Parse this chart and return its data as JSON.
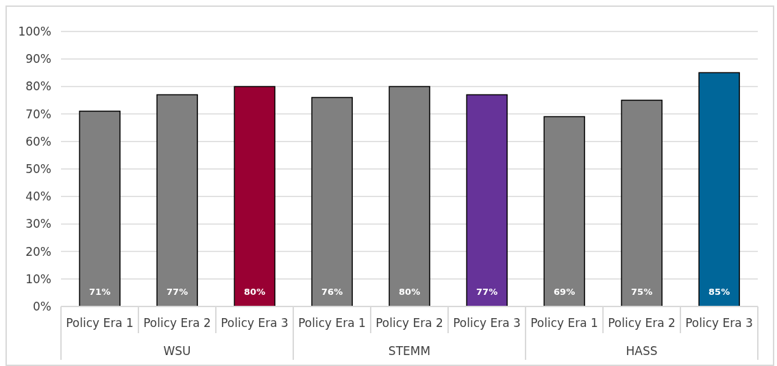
{
  "chart_data": {
    "type": "bar",
    "categories": [
      "Policy Era 1",
      "Policy Era 2",
      "Policy Era 3",
      "Policy Era 1",
      "Policy Era 2",
      "Policy Era 3",
      "Policy Era 1",
      "Policy Era 2",
      "Policy Era 3"
    ],
    "values": [
      71,
      77,
      80,
      76,
      80,
      77,
      69,
      75,
      85
    ],
    "colors": [
      "#808080",
      "#808080",
      "#990033",
      "#808080",
      "#808080",
      "#663399",
      "#808080",
      "#808080",
      "#006699"
    ],
    "value_labels": [
      "71%",
      "77%",
      "80%",
      "76%",
      "80%",
      "77%",
      "69%",
      "75%",
      "85%"
    ],
    "ylim": [
      0,
      100
    ],
    "yticks": [
      {
        "value": 0,
        "label": "0%"
      },
      {
        "value": 10,
        "label": "10%"
      },
      {
        "value": 20,
        "label": "20%"
      },
      {
        "value": 30,
        "label": "30%"
      },
      {
        "value": 40,
        "label": "40%"
      },
      {
        "value": 50,
        "label": "50%"
      },
      {
        "value": 60,
        "label": "60%"
      },
      {
        "value": 70,
        "label": "70%"
      },
      {
        "value": 80,
        "label": "80%"
      },
      {
        "value": 90,
        "label": "90%"
      },
      {
        "value": 100,
        "label": "100%"
      }
    ],
    "grid": "y",
    "annotations": [
      "WSU",
      "STEMM",
      "HASS"
    ]
  }
}
